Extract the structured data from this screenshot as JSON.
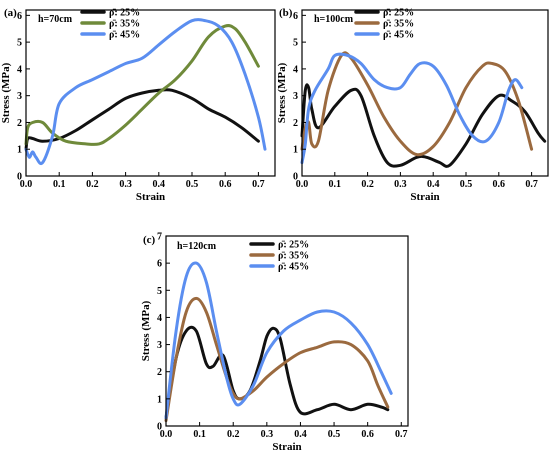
{
  "figure": {
    "colors": {
      "black": "#111111",
      "brown": "#9b6a3f",
      "blue": "#5b8ef0",
      "olive": "#6f8a3a"
    }
  },
  "chart_data": [
    {
      "panel": "(a)",
      "label": "h=70cm",
      "type": "line",
      "xlabel": "Strain",
      "ylabel": "Stress (MPa)",
      "xlim": [
        0.0,
        0.75
      ],
      "ylim": [
        0,
        6.2
      ],
      "xticks": [
        "0.0",
        "0.1",
        "0.2",
        "0.3",
        "0.4",
        "0.5",
        "0.6",
        "0.7"
      ],
      "yticks": [
        "0",
        "1",
        "2",
        "3",
        "4",
        "5",
        "6"
      ],
      "legend_position": "top-right",
      "series": [
        {
          "name": "ρ̄: 25%",
          "color": "#111111",
          "x": [
            0.0,
            0.005,
            0.02,
            0.05,
            0.1,
            0.15,
            0.2,
            0.25,
            0.3,
            0.35,
            0.4,
            0.44,
            0.5,
            0.55,
            0.6,
            0.65,
            0.7
          ],
          "y": [
            1.0,
            1.4,
            1.4,
            1.3,
            1.4,
            1.7,
            2.1,
            2.5,
            2.9,
            3.1,
            3.2,
            3.2,
            2.9,
            2.5,
            2.2,
            1.8,
            1.3
          ]
        },
        {
          "name": "ρ̄: 35%",
          "color": "#6f8a3a",
          "x": [
            0.0,
            0.005,
            0.02,
            0.05,
            0.08,
            0.12,
            0.18,
            0.22,
            0.25,
            0.3,
            0.35,
            0.4,
            0.45,
            0.5,
            0.55,
            0.6,
            0.63,
            0.66,
            0.7
          ],
          "y": [
            1.2,
            1.8,
            2.0,
            2.0,
            1.6,
            1.3,
            1.2,
            1.2,
            1.4,
            1.9,
            2.5,
            3.1,
            3.6,
            4.3,
            5.2,
            5.6,
            5.5,
            5.0,
            4.1
          ]
        },
        {
          "name": "ρ̄: 45%",
          "color": "#5b8ef0",
          "x": [
            0.0,
            0.01,
            0.02,
            0.03,
            0.05,
            0.08,
            0.1,
            0.15,
            0.2,
            0.25,
            0.3,
            0.35,
            0.4,
            0.45,
            0.5,
            0.54,
            0.58,
            0.62,
            0.66,
            0.7,
            0.72
          ],
          "y": [
            1.0,
            0.7,
            0.9,
            0.7,
            0.5,
            1.5,
            2.7,
            3.3,
            3.6,
            3.9,
            4.2,
            4.4,
            4.9,
            5.4,
            5.8,
            5.8,
            5.6,
            5.0,
            3.8,
            2.2,
            1.0
          ]
        }
      ]
    },
    {
      "panel": "(b)",
      "label": "h=100cm",
      "type": "line",
      "xlabel": "Strain",
      "ylabel": "Stress (MPa)",
      "xlim": [
        0.0,
        0.75
      ],
      "ylim": [
        0,
        6.2
      ],
      "xticks": [
        "0.0",
        "0.1",
        "0.2",
        "0.3",
        "0.4",
        "0.5",
        "0.6",
        "0.7"
      ],
      "yticks": [
        "0",
        "1",
        "2",
        "3",
        "4",
        "5",
        "6"
      ],
      "legend_position": "top-right",
      "series": [
        {
          "name": "ρ̄: 25%",
          "color": "#111111",
          "x": [
            0.0,
            0.01,
            0.02,
            0.03,
            0.05,
            0.1,
            0.15,
            0.18,
            0.22,
            0.26,
            0.3,
            0.35,
            0.38,
            0.42,
            0.45,
            0.5,
            0.55,
            0.6,
            0.64,
            0.68,
            0.72,
            0.74
          ],
          "y": [
            1.5,
            3.2,
            3.3,
            2.5,
            1.8,
            2.6,
            3.2,
            3.0,
            1.5,
            0.5,
            0.4,
            0.7,
            0.7,
            0.5,
            0.4,
            1.2,
            2.3,
            3.0,
            2.8,
            2.4,
            1.6,
            1.3
          ]
        },
        {
          "name": "ρ̄: 35%",
          "color": "#9b6a3f",
          "x": [
            0.0,
            0.01,
            0.02,
            0.03,
            0.05,
            0.08,
            0.12,
            0.15,
            0.2,
            0.25,
            0.3,
            0.35,
            0.4,
            0.45,
            0.5,
            0.55,
            0.58,
            0.62,
            0.66,
            0.7
          ],
          "y": [
            1.0,
            1.8,
            2.0,
            1.2,
            1.3,
            3.2,
            4.5,
            4.4,
            3.4,
            2.2,
            1.3,
            0.8,
            1.1,
            2.0,
            3.3,
            4.1,
            4.2,
            3.9,
            2.8,
            1.0
          ]
        },
        {
          "name": "ρ̄: 45%",
          "color": "#5b8ef0",
          "x": [
            0.0,
            0.01,
            0.02,
            0.04,
            0.08,
            0.1,
            0.14,
            0.18,
            0.22,
            0.26,
            0.3,
            0.33,
            0.36,
            0.4,
            0.44,
            0.48,
            0.52,
            0.56,
            0.6,
            0.63,
            0.65,
            0.67
          ],
          "y": [
            0.5,
            1.2,
            2.5,
            3.2,
            4.0,
            4.5,
            4.5,
            4.2,
            3.6,
            3.3,
            3.3,
            3.8,
            4.2,
            4.1,
            3.4,
            2.3,
            1.5,
            1.3,
            2.0,
            3.2,
            3.6,
            3.3
          ]
        }
      ]
    },
    {
      "panel": "(c)",
      "label": "h=120cm",
      "type": "line",
      "xlabel": "Strain",
      "ylabel": "Stress (MPa)",
      "xlim": [
        0.0,
        0.72
      ],
      "ylim": [
        0,
        7
      ],
      "xticks": [
        "0.0",
        "0.1",
        "0.2",
        "0.3",
        "0.4",
        "0.5",
        "0.6",
        "0.7"
      ],
      "yticks": [
        "0",
        "1",
        "2",
        "3",
        "4",
        "5",
        "6",
        "7"
      ],
      "legend_position": "top-right",
      "series": [
        {
          "name": "ρ̄: 25%",
          "color": "#111111",
          "x": [
            0.0,
            0.03,
            0.06,
            0.09,
            0.12,
            0.14,
            0.17,
            0.2,
            0.22,
            0.25,
            0.28,
            0.3,
            0.32,
            0.34,
            0.37,
            0.4,
            0.45,
            0.5,
            0.55,
            0.6,
            0.64,
            0.66
          ],
          "y": [
            0.3,
            2.5,
            3.5,
            3.5,
            2.3,
            2.2,
            2.6,
            1.3,
            1.0,
            1.3,
            2.4,
            3.3,
            3.6,
            3.2,
            1.5,
            0.5,
            0.6,
            0.8,
            0.6,
            0.8,
            0.7,
            0.6
          ]
        },
        {
          "name": "ρ̄: 35%",
          "color": "#9b6a3f",
          "x": [
            0.0,
            0.03,
            0.06,
            0.09,
            0.12,
            0.15,
            0.18,
            0.2,
            0.22,
            0.26,
            0.3,
            0.35,
            0.4,
            0.45,
            0.5,
            0.55,
            0.6,
            0.63,
            0.66
          ],
          "y": [
            0.2,
            2.5,
            4.2,
            4.7,
            4.2,
            3.0,
            1.8,
            1.2,
            1.0,
            1.3,
            1.8,
            2.3,
            2.7,
            2.9,
            3.1,
            3.0,
            2.4,
            1.5,
            0.7
          ]
        },
        {
          "name": "ρ̄: 45%",
          "color": "#5b8ef0",
          "x": [
            0.0,
            0.03,
            0.06,
            0.09,
            0.12,
            0.15,
            0.18,
            0.2,
            0.22,
            0.26,
            0.3,
            0.35,
            0.4,
            0.45,
            0.5,
            0.55,
            0.6,
            0.64,
            0.67
          ],
          "y": [
            0.3,
            3.5,
            5.5,
            6.0,
            5.3,
            3.5,
            1.8,
            1.0,
            0.8,
            1.5,
            2.7,
            3.5,
            3.9,
            4.2,
            4.2,
            3.8,
            3.0,
            2.0,
            1.2
          ]
        }
      ]
    }
  ]
}
